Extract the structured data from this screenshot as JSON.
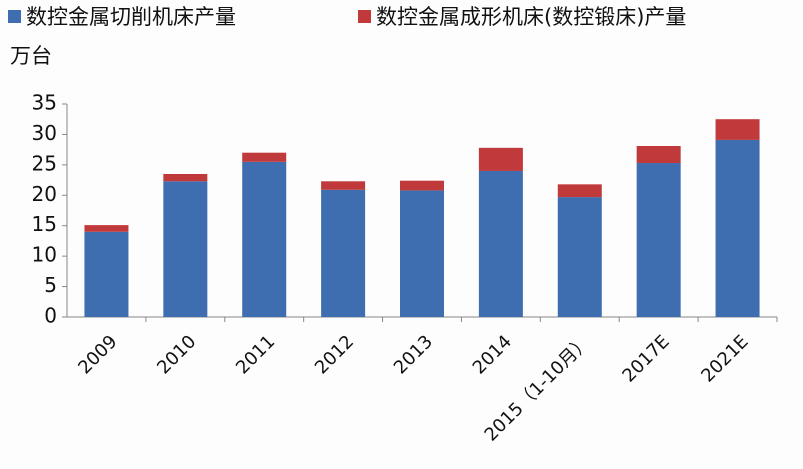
{
  "chart_data": {
    "type": "stacked_bar",
    "y_label": "万台",
    "categories": [
      "2009",
      "2010",
      "2011",
      "2012",
      "2013",
      "2014",
      "2015（1-10月）",
      "2017E",
      "2021E"
    ],
    "series": [
      {
        "name": "数控金属切削机床产量",
        "color": "#3e6db0",
        "values": [
          14.0,
          22.3,
          25.5,
          20.9,
          20.8,
          24.0,
          19.7,
          25.3,
          29.1
        ]
      },
      {
        "name": "数控金属成形机床(数控锻床)产量",
        "color": "#c0393b",
        "values": [
          1.1,
          1.2,
          1.5,
          1.4,
          1.6,
          3.8,
          2.1,
          2.8,
          3.4
        ]
      }
    ],
    "ylim": [
      0,
      35
    ],
    "yticks": [
      0,
      5,
      10,
      15,
      20,
      25,
      30,
      35
    ],
    "legend": "top"
  }
}
